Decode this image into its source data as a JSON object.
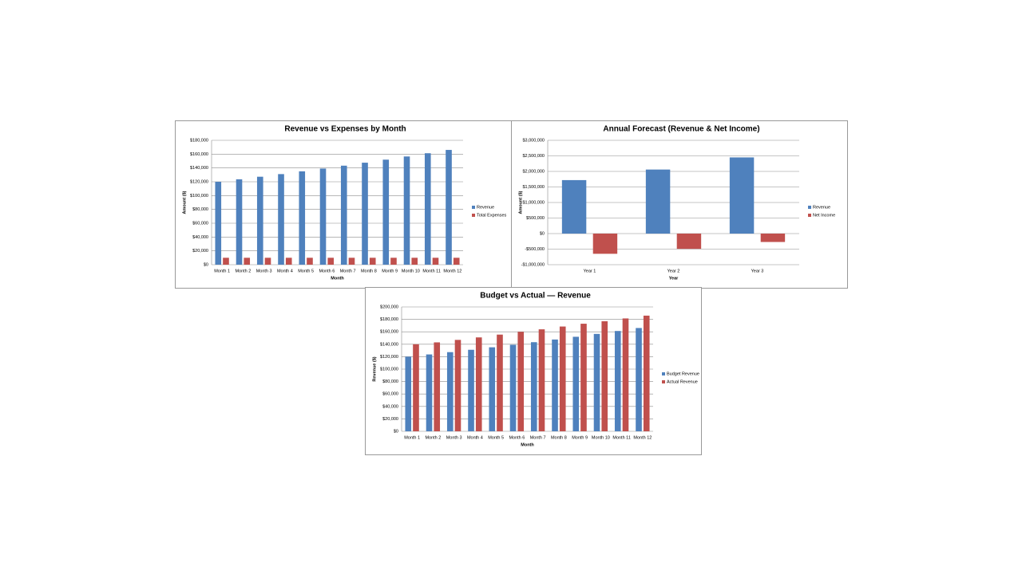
{
  "chart_data": [
    {
      "type": "bar",
      "title": "Revenue vs Expenses by Month",
      "x_label": "Month",
      "y_label": "Amount ($)",
      "categories": [
        "Month 1",
        "Month 2",
        "Month 3",
        "Month 4",
        "Month 5",
        "Month 6",
        "Month 7",
        "Month 8",
        "Month 9",
        "Month 10",
        "Month 11",
        "Month 12"
      ],
      "series": [
        {
          "name": "Revenue",
          "color": "#4f81bd",
          "values": [
            120000,
            123600,
            127300,
            131100,
            135100,
            139100,
            143300,
            147600,
            152000,
            156600,
            161300,
            166100
          ]
        },
        {
          "name": "Total Expenses",
          "color": "#c0504d",
          "values": [
            10000,
            10000,
            10000,
            10000,
            10000,
            10000,
            10000,
            10000,
            10000,
            10000,
            10000,
            10000
          ]
        }
      ],
      "ylim": [
        0,
        180000
      ],
      "yticks": [
        {
          "value": 0,
          "label": "$0"
        },
        {
          "value": 20000,
          "label": "$20,000"
        },
        {
          "value": 40000,
          "label": "$40,000"
        },
        {
          "value": 60000,
          "label": "$60,000"
        },
        {
          "value": 80000,
          "label": "$80,000"
        },
        {
          "value": 100000,
          "label": "$100,000"
        },
        {
          "value": 120000,
          "label": "$120,000"
        },
        {
          "value": 140000,
          "label": "$140,000"
        },
        {
          "value": 160000,
          "label": "$160,000"
        },
        {
          "value": 180000,
          "label": "$180,000"
        }
      ],
      "grid": true,
      "legend": "right"
    },
    {
      "type": "bar",
      "title": "Annual Forecast (Revenue & Net Income)",
      "x_label": "Year",
      "y_label": "Amount ($)",
      "categories": [
        "Year 1",
        "Year 2",
        "Year 3"
      ],
      "series": [
        {
          "name": "Revenue",
          "color": "#4f81bd",
          "values": [
            1720000,
            2060000,
            2450000
          ]
        },
        {
          "name": "Net Income",
          "color": "#c0504d",
          "values": [
            -650000,
            -490000,
            -270000
          ]
        }
      ],
      "ylim": [
        -1000000,
        3000000
      ],
      "yticks": [
        {
          "value": -1000000,
          "label": "-$1,000,000"
        },
        {
          "value": -500000,
          "label": "-$500,000"
        },
        {
          "value": 0,
          "label": "$0"
        },
        {
          "value": 500000,
          "label": "$500,000"
        },
        {
          "value": 1000000,
          "label": "$1,000,000"
        },
        {
          "value": 1500000,
          "label": "$1,500,000"
        },
        {
          "value": 2000000,
          "label": "$2,000,000"
        },
        {
          "value": 2500000,
          "label": "$2,500,000"
        },
        {
          "value": 3000000,
          "label": "$3,000,000"
        }
      ],
      "grid": true,
      "legend": "right"
    },
    {
      "type": "bar",
      "title": "Budget vs Actual — Revenue",
      "x_label": "Month",
      "y_label": "Revenue ($)",
      "categories": [
        "Month 1",
        "Month 2",
        "Month 3",
        "Month 4",
        "Month 5",
        "Month 6",
        "Month 7",
        "Month 8",
        "Month 9",
        "Month 10",
        "Month 11",
        "Month 12"
      ],
      "series": [
        {
          "name": "Budget Revenue",
          "color": "#4f81bd",
          "values": [
            120000,
            123600,
            127300,
            131100,
            135100,
            139100,
            143300,
            147600,
            152000,
            156600,
            161300,
            166100
          ]
        },
        {
          "name": "Actual Revenue",
          "color": "#c0504d",
          "values": [
            140000,
            143000,
            147000,
            151000,
            155500,
            160000,
            164000,
            168500,
            173000,
            177000,
            181500,
            186000
          ]
        }
      ],
      "ylim": [
        0,
        200000
      ],
      "yticks": [
        {
          "value": 0,
          "label": "$0"
        },
        {
          "value": 20000,
          "label": "$20,000"
        },
        {
          "value": 40000,
          "label": "$40,000"
        },
        {
          "value": 60000,
          "label": "$60,000"
        },
        {
          "value": 80000,
          "label": "$80,000"
        },
        {
          "value": 100000,
          "label": "$100,000"
        },
        {
          "value": 120000,
          "label": "$120,000"
        },
        {
          "value": 140000,
          "label": "$140,000"
        },
        {
          "value": 160000,
          "label": "$160,000"
        },
        {
          "value": 180000,
          "label": "$180,000"
        },
        {
          "value": 200000,
          "label": "$200,000"
        }
      ],
      "grid": true,
      "legend": "right"
    }
  ]
}
